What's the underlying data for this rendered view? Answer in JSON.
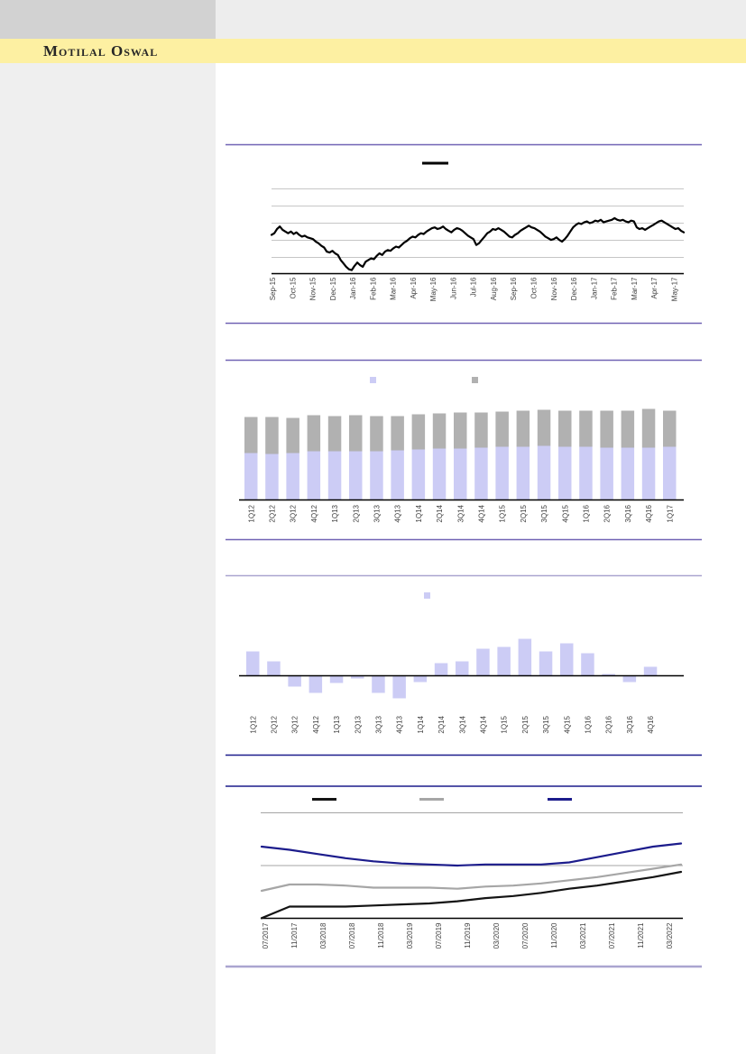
{
  "page": {
    "background": "#ffffff"
  },
  "header": {
    "logo_text": "Motilal Oswal",
    "band_color": "#fdf0a2",
    "top_left_block_color": "#d2d2d2",
    "top_right_strip_color": "#ededed",
    "logo_text_color": "#262626"
  },
  "sidebar": {
    "color": "#efefef"
  },
  "colors": {
    "rule_purple": "#7163b4",
    "rule_light_lavender": "#aaa5d0",
    "rule_navy": "#1c1c8c",
    "gridline_light": "#c6c6c6",
    "gridline_medium": "#a5a5a5",
    "bar_lavender": "#ccccf5",
    "bar_gray": "#b1b1b1",
    "tick_text": "#3f3f3f"
  },
  "chart_data": [
    {
      "id": "stock-price-line-chart",
      "type": "line",
      "title": "",
      "xlabel": "",
      "ylabel": "",
      "y_axis_labels_visible": false,
      "y_unit": "relative-0-100 (axis unlabeled in source)",
      "gridlines": 5,
      "legend": [
        {
          "label": "",
          "marker": "line",
          "color": "#000000"
        }
      ],
      "x_labels": [
        "Sep-15",
        "Oct-15",
        "Nov-15",
        "Dec-15",
        "Jan-16",
        "Feb-16",
        "Mar-16",
        "Apr-16",
        "May-16",
        "Jun-16",
        "Jul-16",
        "Aug-16",
        "Sep-16",
        "Oct-16",
        "Nov-16",
        "Dec-16",
        "Jan-17",
        "Feb-17",
        "Mar-17",
        "Apr-17",
        "May-17"
      ],
      "series": [
        {
          "name": "price-index",
          "color": "#000000",
          "values": [
            46,
            48,
            53,
            56,
            52,
            50,
            48,
            50,
            47,
            49,
            46,
            44,
            45,
            43,
            42,
            41,
            38,
            36,
            33,
            31,
            26,
            25,
            27,
            24,
            22,
            16,
            12,
            8,
            5,
            4,
            9,
            13,
            10,
            8,
            14,
            16,
            18,
            17,
            21,
            24,
            22,
            26,
            28,
            27,
            30,
            32,
            31,
            34,
            37,
            39,
            42,
            44,
            43,
            46,
            48,
            47,
            50,
            52,
            54,
            55,
            53,
            54,
            56,
            53,
            51,
            49,
            52,
            54,
            53,
            51,
            48,
            45,
            43,
            41,
            34,
            36,
            40,
            44,
            48,
            50,
            53,
            52,
            54,
            52,
            50,
            47,
            44,
            43,
            46,
            48,
            51,
            53,
            55,
            57,
            55,
            54,
            52,
            50,
            47,
            44,
            42,
            40,
            41,
            43,
            40,
            38,
            41,
            45,
            50,
            55,
            58,
            60,
            59,
            61,
            62,
            60,
            61,
            63,
            62,
            64,
            61,
            62,
            63,
            64,
            66,
            64,
            63,
            64,
            62,
            61,
            63,
            62,
            55,
            53,
            54,
            52,
            54,
            56,
            58,
            60,
            62,
            63,
            61,
            59,
            57,
            55,
            53,
            54,
            51,
            49
          ]
        }
      ]
    },
    {
      "id": "quarterly-stacked-bar-chart",
      "type": "stacked-bar",
      "title": "",
      "y_axis_labels_visible": false,
      "y_unit": "relative (axis unlabeled in source)",
      "legend": [
        {
          "label": "",
          "marker": "square",
          "color": "#ccccf5"
        },
        {
          "label": "",
          "marker": "square",
          "color": "#b1b1b1"
        }
      ],
      "categories": [
        "1Q12",
        "2Q12",
        "3Q12",
        "4Q12",
        "1Q13",
        "2Q13",
        "3Q13",
        "4Q13",
        "1Q14",
        "2Q14",
        "3Q14",
        "4Q14",
        "1Q15",
        "2Q15",
        "3Q15",
        "4Q15",
        "1Q16",
        "2Q16",
        "3Q16",
        "4Q16",
        "1Q17"
      ],
      "series": [
        {
          "name": "lower-segment",
          "color": "#ccccf5",
          "values": [
            52,
            51,
            52,
            54,
            54,
            54,
            54,
            55,
            56,
            57,
            57,
            58,
            59,
            59,
            60,
            59,
            59,
            58,
            58,
            58,
            59
          ]
        },
        {
          "name": "upper-segment",
          "color": "#b1b1b1",
          "values": [
            40,
            41,
            39,
            40,
            39,
            40,
            39,
            38,
            39,
            39,
            40,
            39,
            39,
            40,
            40,
            40,
            40,
            41,
            41,
            43,
            40
          ]
        }
      ]
    },
    {
      "id": "quarterly-growth-bar-chart",
      "type": "bar",
      "title": "",
      "y_axis_labels_visible": false,
      "y_unit": "relative +/- (axis unlabeled in source)",
      "legend": [
        {
          "label": "",
          "marker": "square",
          "color": "#ccccf5"
        }
      ],
      "categories": [
        "1Q12",
        "2Q12",
        "3Q12",
        "4Q12",
        "1Q13",
        "2Q13",
        "3Q13",
        "4Q13",
        "1Q14",
        "2Q14",
        "3Q14",
        "4Q14",
        "1Q15",
        "2Q15",
        "3Q15",
        "4Q15",
        "1Q16",
        "2Q16",
        "3Q16",
        "4Q16"
      ],
      "series": [
        {
          "name": "growth",
          "color": "#ccccf5",
          "values": [
            27,
            16,
            -12,
            -19,
            -8,
            -3,
            -19,
            -25,
            -7,
            14,
            16,
            30,
            32,
            41,
            27,
            36,
            25,
            2,
            -7,
            10
          ]
        }
      ]
    },
    {
      "id": "forecast-lines-chart",
      "type": "line",
      "title": "",
      "y_axis_labels_visible": false,
      "y_unit": "relative-0-100 (axis unlabeled in source)",
      "gridlines": 2,
      "legend": [
        {
          "label": "",
          "marker": "line",
          "color": "#141414"
        },
        {
          "label": "",
          "marker": "line",
          "color": "#a6a6a6"
        },
        {
          "label": "",
          "marker": "line",
          "color": "#1c1c8c"
        }
      ],
      "x_labels": [
        "07/2017",
        "11/2017",
        "03/2018",
        "07/2018",
        "11/2018",
        "03/2019",
        "07/2019",
        "11/2019",
        "03/2020",
        "07/2020",
        "11/2020",
        "03/2021",
        "07/2021",
        "11/2021",
        "03/2022"
      ],
      "series": [
        {
          "name": "black-line",
          "color": "#141414",
          "values": [
            0,
            11,
            11,
            11,
            12,
            13,
            14,
            16,
            19,
            21,
            24,
            28,
            31,
            35,
            39,
            44
          ]
        },
        {
          "name": "gray-line",
          "color": "#a6a6a6",
          "values": [
            26,
            32,
            32,
            31,
            29,
            29,
            29,
            28,
            30,
            31,
            33,
            36,
            39,
            43,
            47,
            51
          ]
        },
        {
          "name": "navy-line",
          "color": "#1c1c8c",
          "values": [
            68,
            65,
            61,
            57,
            54,
            52,
            51,
            50,
            51,
            51,
            51,
            53,
            58,
            63,
            68,
            71
          ]
        }
      ]
    }
  ]
}
